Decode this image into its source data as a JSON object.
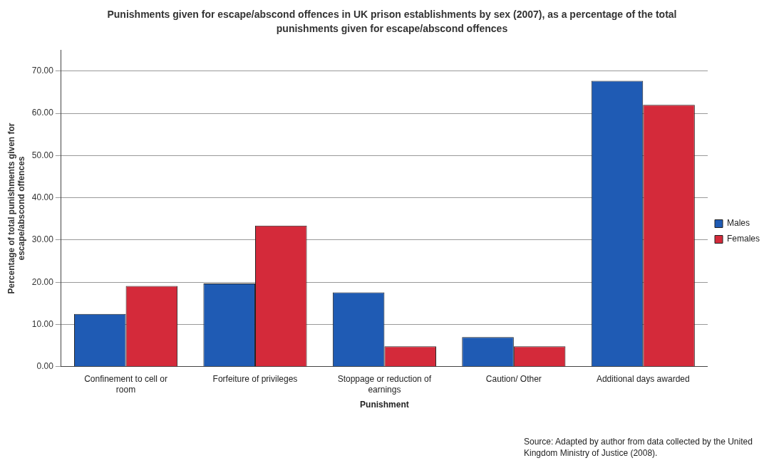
{
  "chart_data": {
    "type": "bar",
    "title": "Punishments given for escape/abscond offences in UK prison establishments by sex (2007), as a percentage of the total punishments given for escape/abscond offences",
    "xlabel": "Punishment",
    "ylabel": "Percentage of total punishments given for escape/abscond offences",
    "categories": [
      "Confinement to cell or room",
      "Forfeiture of privileges",
      "Stoppage or reduction of earnings",
      "Caution/ Other",
      "Additional days awarded"
    ],
    "series": [
      {
        "name": "Males",
        "color": "#1f5bb4",
        "values": [
          12.5,
          19.7,
          17.6,
          7.0,
          67.7
        ]
      },
      {
        "name": "Females",
        "color": "#d42a3a",
        "values": [
          19.1,
          33.4,
          4.8,
          4.8,
          62.0
        ]
      }
    ],
    "ylim": [
      0,
      75
    ],
    "yticks": [
      {
        "value": 0,
        "label": "0.00"
      },
      {
        "value": 10,
        "label": "10.00"
      },
      {
        "value": 20,
        "label": "20.00"
      },
      {
        "value": 30,
        "label": "30.00"
      },
      {
        "value": 40,
        "label": "40.00"
      },
      {
        "value": 50,
        "label": "50.00"
      },
      {
        "value": 60,
        "label": "60.00"
      },
      {
        "value": 70,
        "label": "70.00"
      }
    ],
    "grid": "y",
    "legend": "right",
    "annotations": [
      "Source: Adapted by author from data collected by the United Kingdom Ministry of Justice (2008)."
    ]
  }
}
